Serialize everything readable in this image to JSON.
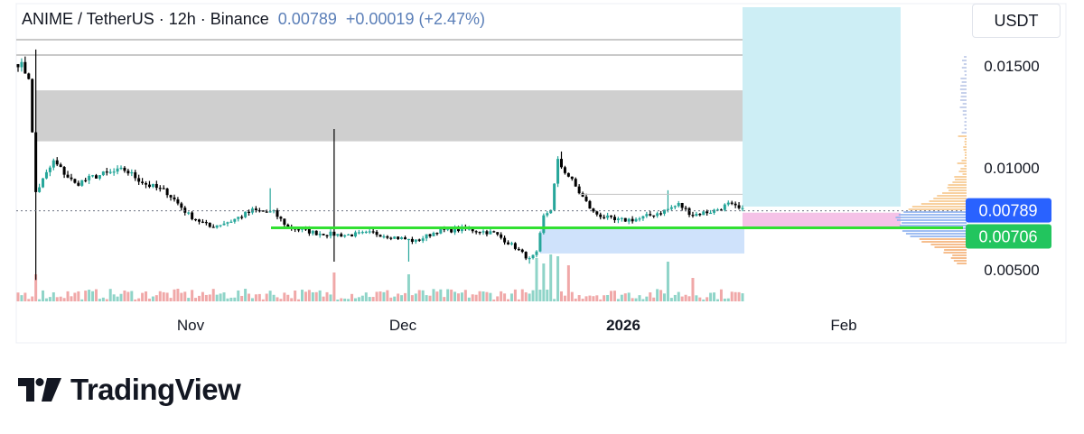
{
  "header": {
    "title": "ANIME / TetherUS · 12h · Binance",
    "price": "0.00789",
    "change": "+0.00019 (+2.47%)"
  },
  "unit_label": "USDT",
  "brand": {
    "name": "TradingView"
  },
  "colors": {
    "up": "#26a69a",
    "down": "#000000",
    "price_badge": "#2962ff",
    "support_badge": "#22c55e",
    "support_line": "#32e032",
    "header_price": "#5b7fb8",
    "zone_gray": "#cfcfcf",
    "target_box": "#cdeef5",
    "pink_zone": "#f5c2e7",
    "blue_zone": "#cfe2fb"
  },
  "chart_data": {
    "type": "candlestick",
    "symbol": "ANIME / TetherUS",
    "interval": "12h",
    "exchange": "Binance",
    "y_ticks": [
      "0.01500",
      "0.01000",
      "0.00500"
    ],
    "y_tick_values": [
      0.015,
      0.01,
      0.005
    ],
    "ylim": [
      0.0035,
      0.0175
    ],
    "x_ticks": [
      "Nov",
      "Dec",
      "2026",
      "Feb"
    ],
    "current_price": 0.00789,
    "current_price_label": "0.00789",
    "support_level": 0.00706,
    "support_label": "0.00706",
    "close_path": [
      {
        "t": 0,
        "v": 0.0152
      },
      {
        "t": 3,
        "v": 0.0145
      },
      {
        "t": 5,
        "v": 0.0088
      },
      {
        "t": 10,
        "v": 0.0103
      },
      {
        "t": 16,
        "v": 0.0092
      },
      {
        "t": 22,
        "v": 0.0096
      },
      {
        "t": 30,
        "v": 0.0099
      },
      {
        "t": 36,
        "v": 0.0092
      },
      {
        "t": 42,
        "v": 0.0088
      },
      {
        "t": 48,
        "v": 0.0077
      },
      {
        "t": 54,
        "v": 0.0071
      },
      {
        "t": 60,
        "v": 0.0074
      },
      {
        "t": 66,
        "v": 0.0079
      },
      {
        "t": 72,
        "v": 0.0078
      },
      {
        "t": 76,
        "v": 0.0071
      },
      {
        "t": 84,
        "v": 0.0068
      },
      {
        "t": 92,
        "v": 0.0067
      },
      {
        "t": 100,
        "v": 0.0068
      },
      {
        "t": 106,
        "v": 0.0066
      },
      {
        "t": 112,
        "v": 0.0064
      },
      {
        "t": 118,
        "v": 0.0069
      },
      {
        "t": 126,
        "v": 0.007
      },
      {
        "t": 134,
        "v": 0.0068
      },
      {
        "t": 140,
        "v": 0.0061
      },
      {
        "t": 144,
        "v": 0.0055
      },
      {
        "t": 146,
        "v": 0.0058
      },
      {
        "t": 148,
        "v": 0.0076
      },
      {
        "t": 150,
        "v": 0.008
      },
      {
        "t": 152,
        "v": 0.0103
      },
      {
        "t": 155,
        "v": 0.0096
      },
      {
        "t": 158,
        "v": 0.0088
      },
      {
        "t": 162,
        "v": 0.0078
      },
      {
        "t": 168,
        "v": 0.0074
      },
      {
        "t": 175,
        "v": 0.0075
      },
      {
        "t": 182,
        "v": 0.0079
      },
      {
        "t": 186,
        "v": 0.0082
      },
      {
        "t": 190,
        "v": 0.0077
      },
      {
        "t": 196,
        "v": 0.0079
      },
      {
        "t": 200,
        "v": 0.0082
      },
      {
        "t": 204,
        "v": 0.0079
      }
    ],
    "wick_highs": [
      {
        "t": 5,
        "v": 0.0158
      },
      {
        "t": 71,
        "v": 0.009
      },
      {
        "t": 89,
        "v": 0.0119
      },
      {
        "t": 153,
        "v": 0.0108
      },
      {
        "t": 183,
        "v": 0.0089
      }
    ],
    "wick_lows": [
      {
        "t": 5,
        "v": 0.0045
      },
      {
        "t": 89,
        "v": 0.0054
      },
      {
        "t": 110,
        "v": 0.0054
      },
      {
        "t": 144,
        "v": 0.0053
      }
    ],
    "zones": {
      "resistance_band": [
        0.0113,
        0.0138
      ],
      "target_box": [
        0.0081,
        0.018
      ],
      "entry_zone": [
        0.00706,
        0.0078
      ],
      "lower_zone": [
        0.0058,
        0.00706
      ]
    }
  }
}
